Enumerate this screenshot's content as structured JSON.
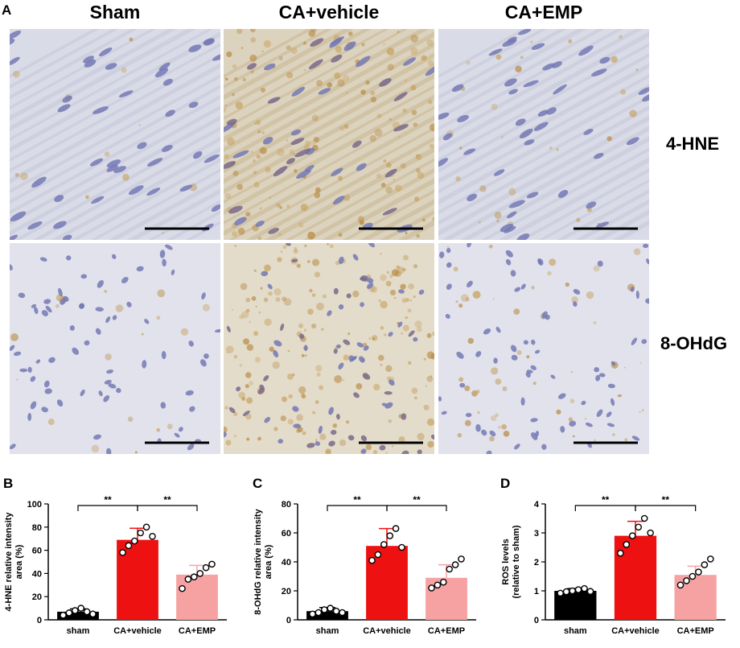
{
  "figure": {
    "panel_labels": [
      "A",
      "B",
      "C",
      "D"
    ],
    "columns": [
      "Sham",
      "CA+vehicle",
      "CA+EMP"
    ],
    "rows": [
      "4-HNE",
      "8-OHdG"
    ]
  },
  "chart_data": [
    {
      "type": "bar",
      "panel": "B",
      "ylabel": "4-HNE relative intensity area (%)",
      "ylabel_lines": [
        "4-HNE relative intensity",
        "area (%)"
      ],
      "categories": [
        "sham",
        "CA+vehicle",
        "CA+EMP"
      ],
      "values": [
        7,
        69,
        39
      ],
      "errors": [
        2.5,
        10,
        8
      ],
      "points": [
        [
          4,
          6,
          8,
          10,
          7,
          5
        ],
        [
          58,
          64,
          68,
          75,
          80,
          72
        ],
        [
          27,
          35,
          37,
          40,
          45,
          48
        ]
      ],
      "ylim": [
        0,
        100
      ],
      "yticks": [
        0,
        20,
        40,
        60,
        80,
        100
      ],
      "colors": [
        "#000000",
        "#ee1111",
        "#f7a2a2"
      ],
      "significance": [
        {
          "from": 0,
          "to": 1,
          "label": "**"
        },
        {
          "from": 1,
          "to": 2,
          "label": "**"
        }
      ]
    },
    {
      "type": "bar",
      "panel": "C",
      "ylabel": "8-OHdG relative intensity area (%)",
      "ylabel_lines": [
        "8-OHdG relative intensity",
        "area (%)"
      ],
      "categories": [
        "sham",
        "CA+vehicle",
        "CA+EMP"
      ],
      "values": [
        6,
        51,
        29
      ],
      "errors": [
        2.5,
        12,
        9
      ],
      "points": [
        [
          4,
          5,
          7,
          8,
          6,
          5
        ],
        [
          41,
          45,
          52,
          58,
          63,
          50
        ],
        [
          22,
          24,
          26,
          35,
          38,
          42
        ]
      ],
      "ylim": [
        0,
        80
      ],
      "yticks": [
        0,
        20,
        40,
        60,
        80
      ],
      "colors": [
        "#000000",
        "#ee1111",
        "#f7a2a2"
      ],
      "significance": [
        {
          "from": 0,
          "to": 1,
          "label": "**"
        },
        {
          "from": 1,
          "to": 2,
          "label": "**"
        }
      ]
    },
    {
      "type": "bar",
      "panel": "D",
      "ylabel": "ROS levels (relative to sham)",
      "ylabel_lines": [
        "ROS levels",
        "(relative to sham)"
      ],
      "categories": [
        "sham",
        "CA+vehicle",
        "CA+EMP"
      ],
      "values": [
        1.0,
        2.9,
        1.55
      ],
      "errors": [
        0.08,
        0.5,
        0.3
      ],
      "points": [
        [
          0.92,
          0.97,
          1.0,
          1.04,
          1.08,
          0.98
        ],
        [
          2.3,
          2.6,
          2.9,
          3.2,
          3.5,
          3.0
        ],
        [
          1.2,
          1.35,
          1.5,
          1.65,
          1.9,
          2.1
        ]
      ],
      "ylim": [
        0,
        4
      ],
      "yticks": [
        0,
        1,
        2,
        3,
        4
      ],
      "colors": [
        "#000000",
        "#ee1111",
        "#f7a2a2"
      ],
      "significance": [
        {
          "from": 0,
          "to": 1,
          "label": "**"
        },
        {
          "from": 1,
          "to": 2,
          "label": "**"
        }
      ]
    }
  ]
}
